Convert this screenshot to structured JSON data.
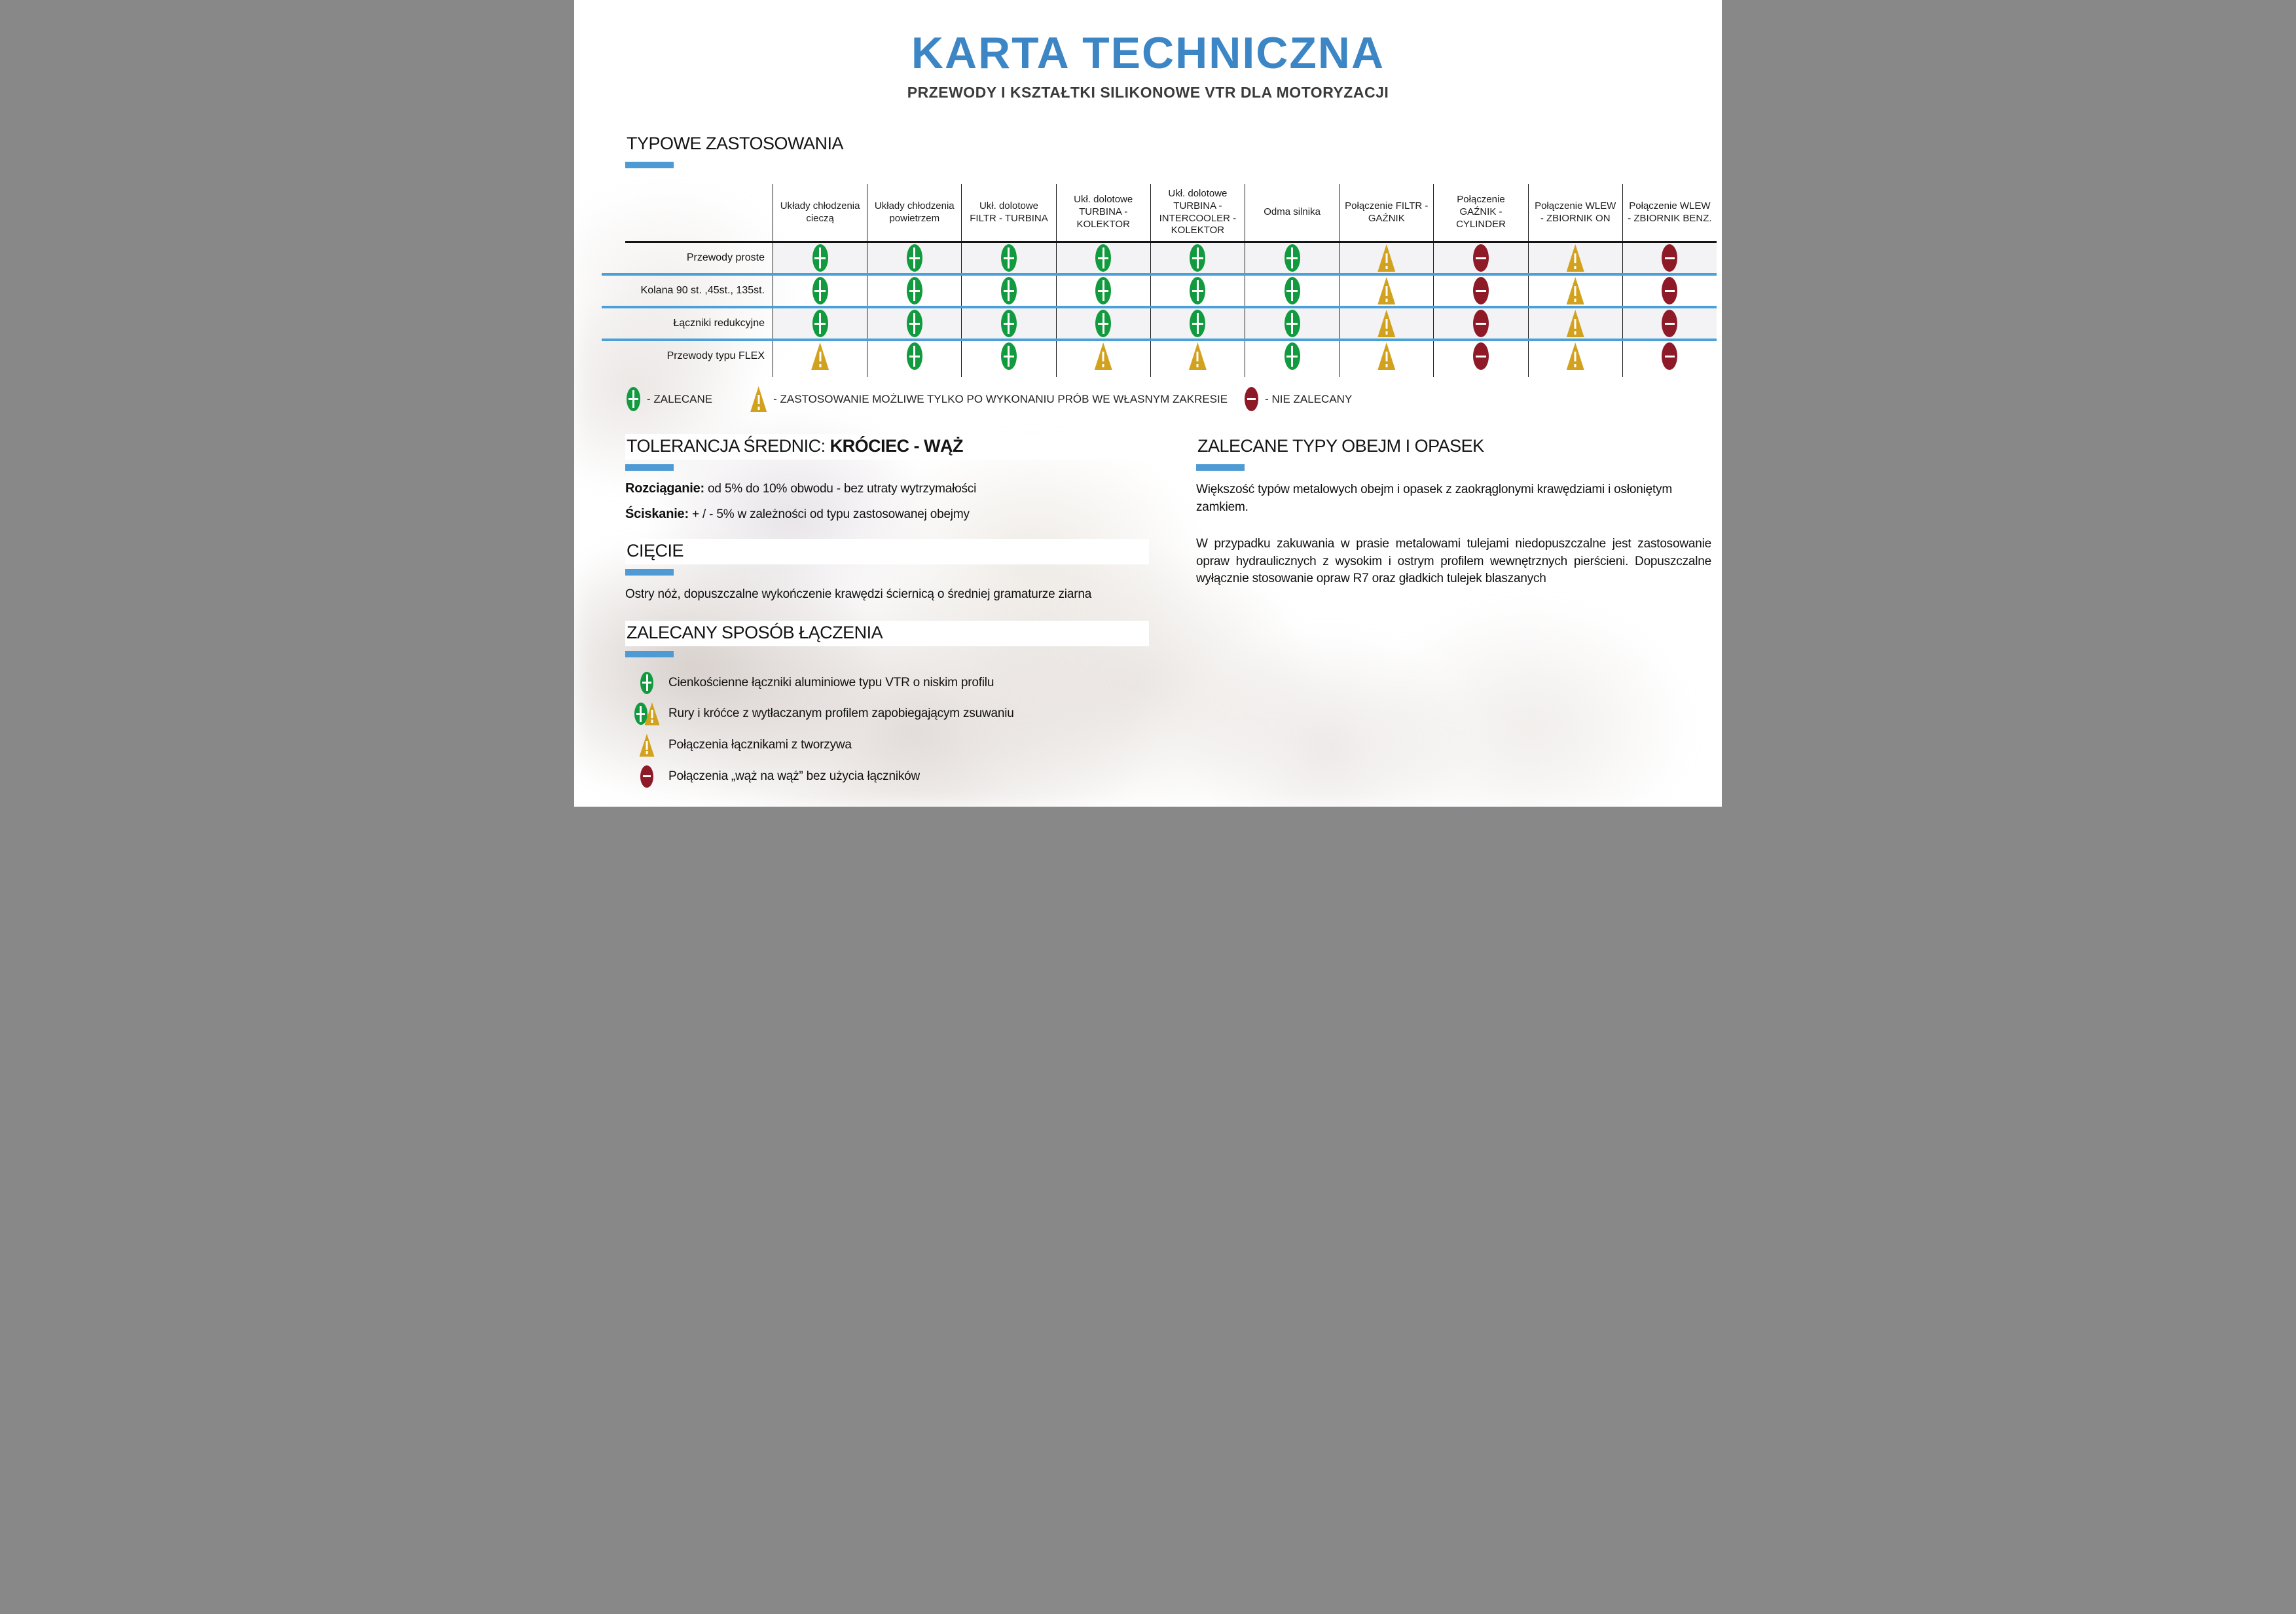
{
  "title": "KARTA TECHNICZNA",
  "subtitle": "PRZEWODY I KSZTAŁTKI SILIKONOWE VTR DLA MOTORYZACJI",
  "colors": {
    "accent_blue": "#3d86c6",
    "separator_blue": "#4aa0d8",
    "status_green": "#129a3e",
    "status_yellow": "#d2a11d",
    "status_red": "#8e1a28"
  },
  "applications": {
    "heading": "TYPOWE ZASTOSOWANIA",
    "columns": [
      "Układy chłodzenia cieczą",
      "Układy chłodzenia powietrzem",
      "Ukł. dolotowe FILTR - TURBINA",
      "Ukł. dolotowe TURBINA - KOLEKTOR",
      "Ukł. dolotowe TURBINA - INTERCOOLER - KOLEKTOR",
      "Odma silnika",
      "Połączenie FILTR - GAŹNIK",
      "Połączenie GAŹNIK - CYLINDER",
      "Połączenie WLEW - ZBIORNIK ON",
      "Połączenie WLEW - ZBIORNIK BENZ."
    ],
    "rows": [
      {
        "label": "Przewody proste",
        "cells": [
          "plus",
          "plus",
          "plus",
          "plus",
          "plus",
          "plus",
          "warn",
          "minus",
          "warn",
          "minus"
        ]
      },
      {
        "label": "Kolana 90 st. ,45st., 135st.",
        "cells": [
          "plus",
          "plus",
          "plus",
          "plus",
          "plus",
          "plus",
          "warn",
          "minus",
          "warn",
          "minus"
        ]
      },
      {
        "label": "Łączniki redukcyjne",
        "cells": [
          "plus",
          "plus",
          "plus",
          "plus",
          "plus",
          "plus",
          "warn",
          "minus",
          "warn",
          "minus"
        ]
      },
      {
        "label": "Przewody typu FLEX",
        "cells": [
          "warn",
          "plus",
          "plus",
          "warn",
          "warn",
          "plus",
          "warn",
          "minus",
          "warn",
          "minus"
        ]
      }
    ],
    "legend": [
      {
        "icon": "plus",
        "text": "- ZALECANE"
      },
      {
        "icon": "warn",
        "text": "- ZASTOSOWANIE MOŻLIWE TYLKO PO WYKONANIU PRÓB WE WŁASNYM ZAKRESIE"
      },
      {
        "icon": "minus",
        "text": "- NIE ZALECANY"
      }
    ]
  },
  "tolerance": {
    "heading_normal": "TOLERANCJA ŚREDNIC:  ",
    "heading_bold": "KRÓCIEC - WĄŻ",
    "lines": [
      {
        "lead": "Rozciąganie:",
        "text": "  od 5% do 10% obwodu - bez utraty wytrzymałości"
      },
      {
        "lead": "Ściskanie:",
        "text": "  + / -  5%  w zależności od typu zastosowanej obejmy"
      }
    ]
  },
  "cutting": {
    "heading": "CIĘCIE",
    "text": "Ostry nóż, dopuszczalne wykończenie krawędzi ściernicą  o średniej gramaturze ziarna"
  },
  "joining": {
    "heading": "ZALECANY SPOSÓB ŁĄCZENIA",
    "items": [
      {
        "icons": [
          "plus"
        ],
        "text": "Cienkościenne łączniki aluminiowe typu VTR o niskim profilu"
      },
      {
        "icons": [
          "plus",
          "warn"
        ],
        "text": "Rury i króćce z wytłaczanym profilem zapobiegającym zsuwaniu"
      },
      {
        "icons": [
          "warn"
        ],
        "text": "Połączenia łącznikami z tworzywa"
      },
      {
        "icons": [
          "minus"
        ],
        "text": "Połączenia „wąż na wąż” bez użycia łączników"
      }
    ]
  },
  "clamps": {
    "heading": "ZALECANE TYPY OBEJM I OPASEK",
    "paragraphs": [
      "Większość typów metalowych obejm i opasek  z zaokrąglonymi krawędziami i osłoniętym zamkiem.",
      "W przypadku zakuwania w prasie metalowami tulejami niedopuszczalne jest zastosowanie opraw hydraulicznych z wysokim i ostrym profilem wewnętrznych pierścieni. Dopuszczalne wyłącznie stosowanie opraw R7 oraz gładkich tulejek blaszanych"
    ]
  }
}
